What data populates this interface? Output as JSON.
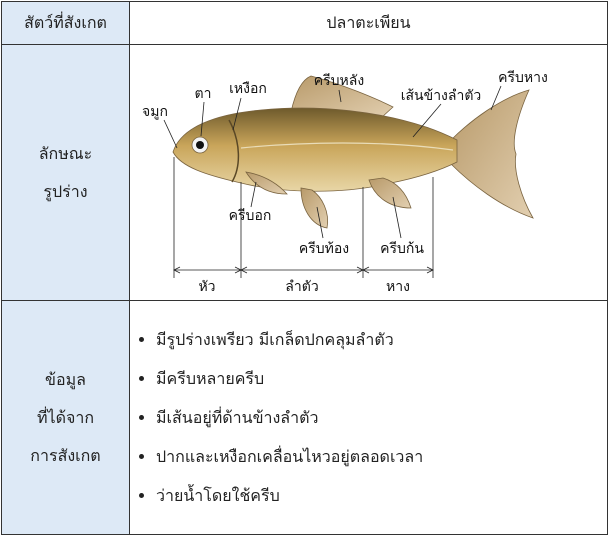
{
  "table": {
    "header": [
      "สัตว์ที่สังเกต",
      "ปลาตะเพียน"
    ],
    "rows": [
      {
        "label": [
          "ลักษณะ",
          "รูปร่าง"
        ],
        "diagram": {
          "labels": [
            "จมูก",
            "ตา",
            "เหงือก",
            "ครีบหลัง",
            "เส้นข้างลำตัว",
            "ครีบหาง",
            "ครีบอก",
            "ครีบท้อง",
            "ครีบก้น"
          ],
          "sections": [
            "หัว",
            "ลำตัว",
            "หาง"
          ]
        }
      },
      {
        "label": [
          "ข้อมูล",
          "ที่ได้จาก",
          "การสังเกต"
        ],
        "items": [
          "มีรูปร่างเพรียว มีเกล็ดปกคลุมลำตัว",
          "มีครีบหลายครีบ",
          "มีเส้นอยู่ที่ด้านข้างลำตัว",
          "ปากและเหงือกเคลื่อนไหวอยู่ตลอดเวลา",
          "ว่ายน้ำโดยใช้ครีบ"
        ]
      }
    ]
  }
}
